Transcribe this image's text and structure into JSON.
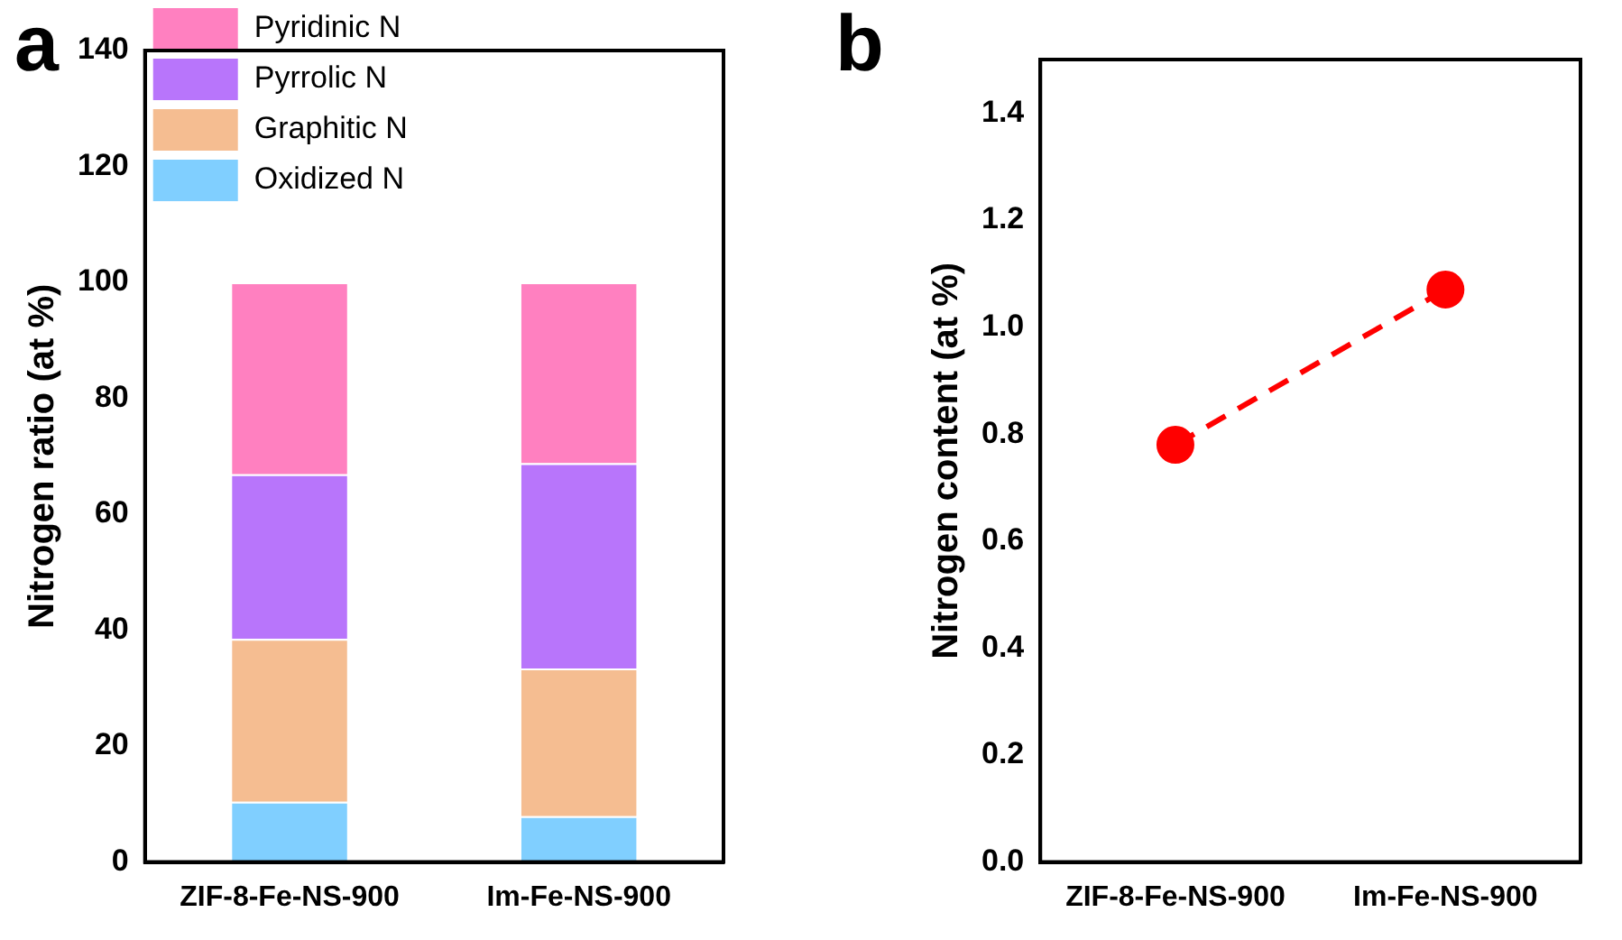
{
  "chart_data": [
    {
      "type": "bar",
      "stacked": true,
      "annotations": [
        "a"
      ],
      "ylabel": "Nitrogen ratio (at %)",
      "categories": [
        "ZIF-8-Fe-NS-900",
        "Im-Fe-NS-900"
      ],
      "ylim": [
        0,
        140
      ],
      "yticks": [
        0,
        20,
        40,
        60,
        80,
        100,
        120,
        140
      ],
      "legend": "top left",
      "series": [
        {
          "name": "Oxidized N",
          "color": "#80cfff",
          "values": [
            10.4,
            7.9
          ]
        },
        {
          "name": "Graphitic N",
          "color": "#f5bd91",
          "values": [
            28.1,
            25.5
          ]
        },
        {
          "name": "Pyrrolic N",
          "color": "#b875fb",
          "values": [
            28.4,
            35.4
          ]
        },
        {
          "name": "Pyridinic N",
          "color": "#ff80c0",
          "values": [
            33.1,
            31.2
          ]
        }
      ]
    },
    {
      "type": "line",
      "annotations": [
        "b"
      ],
      "ylabel": "Nitrogen content (at %)",
      "categories": [
        "ZIF-8-Fe-NS-900",
        "Im-Fe-NS-900"
      ],
      "ylim": [
        0,
        1.5
      ],
      "yticks": [
        {
          "value": 0,
          "label": "0.0"
        },
        0.2,
        0.4,
        0.6,
        0.8,
        {
          "value": 1,
          "label": "1.0"
        },
        1.2,
        1.4
      ],
      "marker": "circle",
      "line_style": "dashed",
      "series": [
        {
          "color": "#ff0000",
          "values": [
            0.78,
            1.07
          ]
        }
      ]
    }
  ]
}
